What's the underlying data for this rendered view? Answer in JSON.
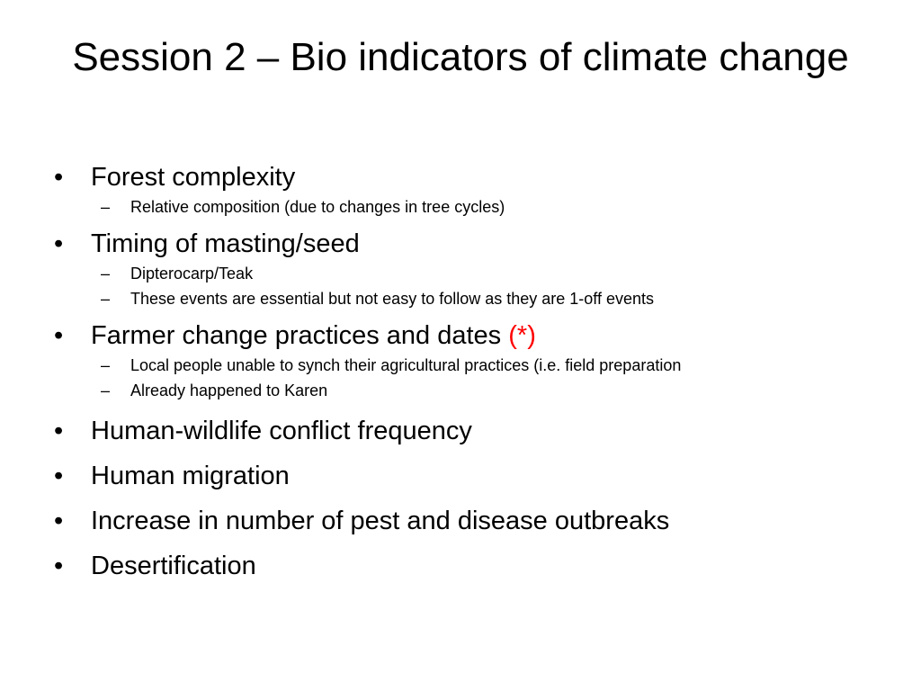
{
  "slide": {
    "title": "Session 2 – Bio indicators of climate change",
    "bullet_glyph": "•",
    "dash_glyph": "–",
    "items": [
      {
        "text": "Forest complexity",
        "subitems": [
          "Relative composition (due to changes in tree cycles)"
        ]
      },
      {
        "text": "Timing of masting/seed",
        "subitems": [
          "Dipterocarp/Teak",
          "These events are essential but not easy to follow as they are 1-off events"
        ]
      },
      {
        "text": "Farmer change practices and dates ",
        "mark": "(*)",
        "subitems": [
          "Local people unable to synch their agricultural practices (i.e. field preparation",
          "Already happened to Karen"
        ]
      },
      {
        "text": "Human-wildlife conflict frequency"
      },
      {
        "text": "Human migration"
      },
      {
        "text": "Increase in number of pest and disease outbreaks"
      },
      {
        "text": "Desertification"
      }
    ],
    "colors": {
      "background": "#ffffff",
      "text": "#000000",
      "mark": "#ff0000"
    }
  }
}
